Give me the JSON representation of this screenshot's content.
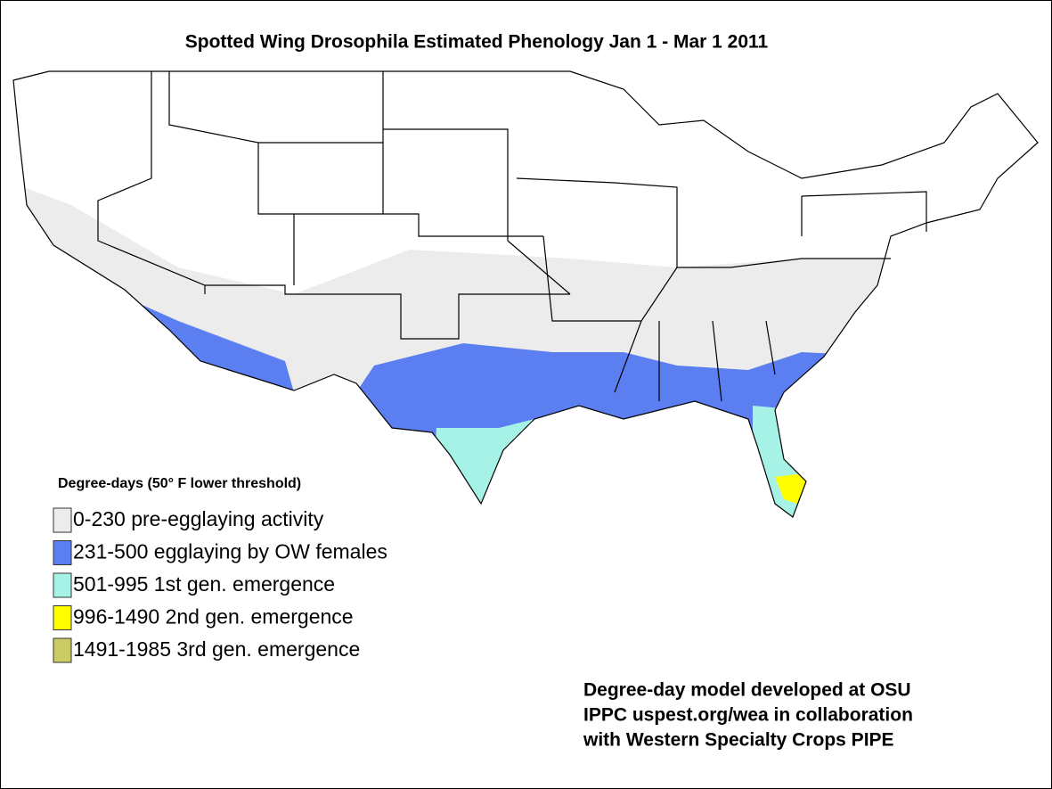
{
  "title": "Spotted Wing Drosophila Estimated Phenology Jan 1 - Mar 1 2011",
  "legend": {
    "title": "Degree-days (50° F lower threshold)",
    "items": [
      {
        "label": "0-230  pre-egglaying activity",
        "color": "#ececec"
      },
      {
        "label": "231-500 egglaying by OW females",
        "color": "#5b7ff0"
      },
      {
        "label": "501-995  1st gen. emergence",
        "color": "#a6f2e6"
      },
      {
        "label": "996-1490  2nd gen. emergence",
        "color": "#ffff00"
      },
      {
        "label": "1491-1985  3rd gen. emergence",
        "color": "#cccc66"
      }
    ]
  },
  "credits": [
    "Degree-day model developed at OSU",
    "IPPC uspest.org/wea in collaboration",
    "with Western Specialty Crops PIPE"
  ]
}
